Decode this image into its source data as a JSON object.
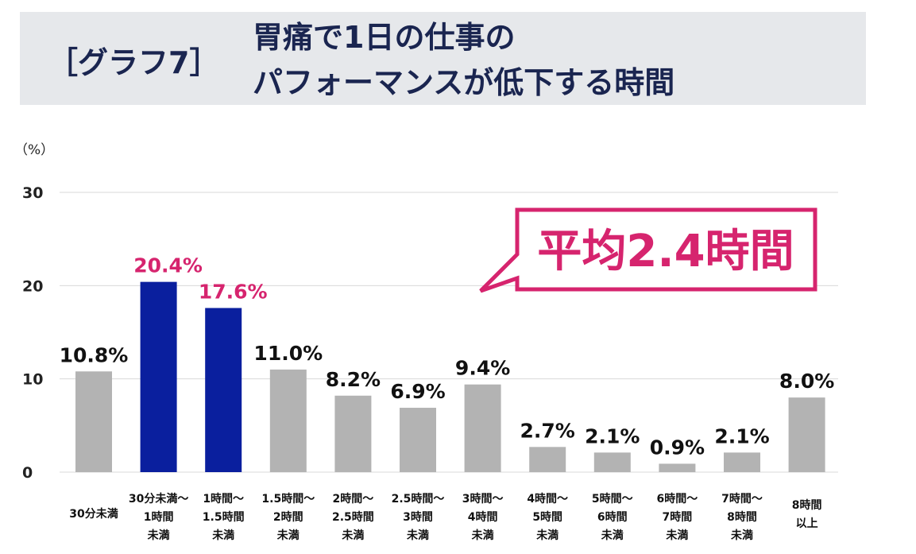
{
  "title": {
    "tag": "［グラフ7］",
    "line1": "胃痛で1日の仕事の",
    "line2": "パフォーマンスが低下する時間"
  },
  "callout": "平均2.4時間",
  "colors": {
    "highlight_bar": "#0a1f9e",
    "bar": "#b3b3b3",
    "highlight_text": "#d6246e",
    "title_bg": "#e6e8eb",
    "title_text": "#1a2550"
  },
  "chart_data": {
    "type": "bar",
    "ylabel": "（%）",
    "ylim": [
      0,
      30
    ],
    "yticks": [
      0,
      10,
      20,
      30
    ],
    "grid": true,
    "categories": [
      [
        "30分未満"
      ],
      [
        "30分未満～",
        "1時間",
        "未満"
      ],
      [
        "1時間～",
        "1.5時間",
        "未満"
      ],
      [
        "1.5時間～",
        "2時間",
        "未満"
      ],
      [
        "2時間～",
        "2.5時間",
        "未満"
      ],
      [
        "2.5時間～",
        "3時間",
        "未満"
      ],
      [
        "3時間～",
        "4時間",
        "未満"
      ],
      [
        "4時間～",
        "5時間",
        "未満"
      ],
      [
        "5時間～",
        "6時間",
        "未満"
      ],
      [
        "6時間～",
        "7時間",
        "未満"
      ],
      [
        "7時間～",
        "8時間",
        "未満"
      ],
      [
        "8時間",
        "以上"
      ]
    ],
    "values": [
      10.8,
      20.4,
      17.6,
      11.0,
      8.2,
      6.9,
      9.4,
      2.7,
      2.1,
      0.9,
      2.1,
      8.0
    ],
    "data_labels": [
      "10.8%",
      "20.4%",
      "17.6%",
      "11.0%",
      "8.2%",
      "6.9%",
      "9.4%",
      "2.7%",
      "2.1%",
      "0.9%",
      "2.1%",
      "8.0%"
    ],
    "highlighted": [
      1,
      2
    ]
  }
}
